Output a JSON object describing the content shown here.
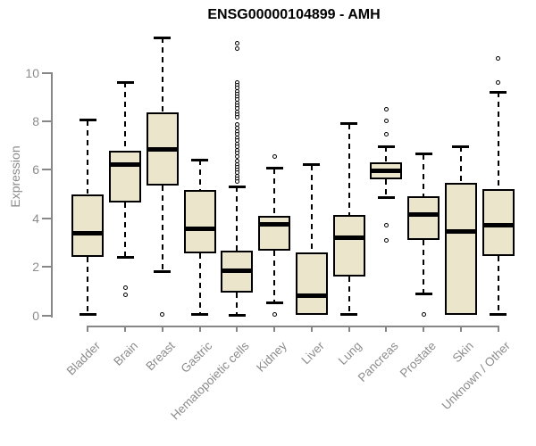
{
  "page": {
    "background": "#ffffff"
  },
  "chart_data": {
    "type": "boxplot",
    "title": "ENSG00000104899 - AMH",
    "ylabel": "Expression",
    "xlabel": "",
    "yticks": [
      0,
      2,
      4,
      6,
      8,
      10
    ],
    "ylim": [
      0,
      11.6
    ],
    "grid": false,
    "legend": null,
    "colors": {
      "box_fill": "#EBE6CB",
      "box_border": "#000000",
      "median": "#000000",
      "whisker": "#000000",
      "axis": "#878787",
      "tick_label": "#8c8c8c",
      "title": "#000000"
    },
    "categories": [
      "Bladder",
      "Brain",
      "Breast",
      "Gastric",
      "Hematopoietic cells",
      "Kidney",
      "Liver",
      "Lung",
      "Pancreas",
      "Prostate",
      "Skin",
      "Unknown / Other"
    ],
    "series": [
      {
        "name": "Bladder",
        "whisker_low": 0.05,
        "q1": 2.4,
        "median": 3.4,
        "q3": 5.0,
        "whisker_high": 8.05,
        "outliers": []
      },
      {
        "name": "Brain",
        "whisker_low": 2.4,
        "q1": 4.65,
        "median": 6.2,
        "q3": 6.8,
        "whisker_high": 9.6,
        "outliers": [
          1.15,
          0.85
        ]
      },
      {
        "name": "Breast",
        "whisker_low": 1.8,
        "q1": 5.35,
        "median": 6.85,
        "q3": 8.35,
        "whisker_high": 11.45,
        "outliers": [
          0.05
        ]
      },
      {
        "name": "Gastric",
        "whisker_low": 0.05,
        "q1": 2.55,
        "median": 3.55,
        "q3": 5.15,
        "whisker_high": 6.4,
        "outliers": []
      },
      {
        "name": "Hematopoietic cells",
        "whisker_low": 0.0,
        "q1": 0.95,
        "median": 1.85,
        "q3": 2.65,
        "whisker_high": 5.3,
        "outliers": [
          11.2,
          11.0,
          9.6,
          9.48,
          9.36,
          9.24,
          9.12,
          9.0,
          8.88,
          8.76,
          8.64,
          8.52,
          8.4,
          8.28,
          8.16,
          7.85,
          7.72,
          7.59,
          7.46,
          7.33,
          7.2,
          7.07,
          6.94,
          6.81,
          6.68,
          6.55,
          6.35,
          6.23,
          6.11,
          5.99,
          5.87,
          5.75,
          5.63,
          5.51
        ]
      },
      {
        "name": "Kidney",
        "whisker_low": 0.5,
        "q1": 2.65,
        "median": 3.75,
        "q3": 4.1,
        "whisker_high": 6.05,
        "outliers": [
          6.55,
          0.05
        ]
      },
      {
        "name": "Liver",
        "whisker_low": 0.0,
        "q1": 0.0,
        "median": 0.8,
        "q3": 2.6,
        "whisker_high": 6.2,
        "outliers": []
      },
      {
        "name": "Lung",
        "whisker_low": 0.05,
        "q1": 1.6,
        "median": 3.2,
        "q3": 4.15,
        "whisker_high": 7.9,
        "outliers": []
      },
      {
        "name": "Pancreas",
        "whisker_low": 4.85,
        "q1": 5.6,
        "median": 5.95,
        "q3": 6.3,
        "whisker_high": 6.95,
        "outliers": [
          8.5,
          8.0,
          7.45,
          3.7,
          3.1
        ]
      },
      {
        "name": "Prostate",
        "whisker_low": 0.9,
        "q1": 3.1,
        "median": 4.15,
        "q3": 4.9,
        "whisker_high": 6.65,
        "outliers": [
          0.05
        ]
      },
      {
        "name": "Skin",
        "whisker_low": 0.0,
        "q1": 0.0,
        "median": 3.45,
        "q3": 5.45,
        "whisker_high": 6.95,
        "outliers": []
      },
      {
        "name": "Unknown / Other",
        "whisker_low": 0.05,
        "q1": 2.45,
        "median": 3.7,
        "q3": 5.2,
        "whisker_high": 9.2,
        "outliers": [
          10.6,
          9.6
        ]
      }
    ]
  }
}
